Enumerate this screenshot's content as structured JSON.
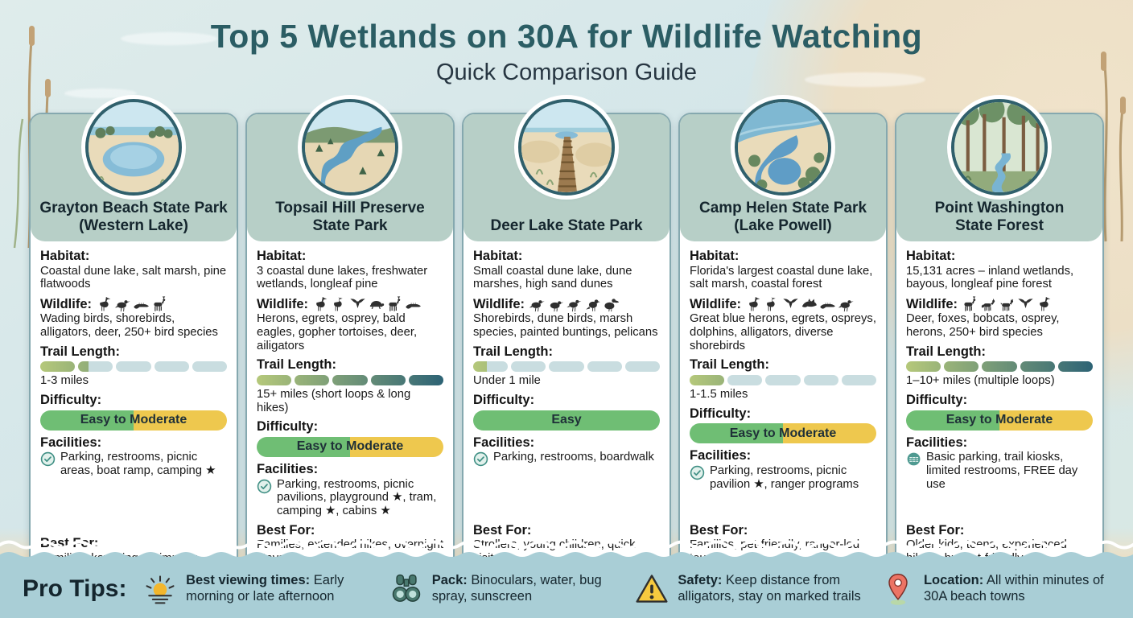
{
  "header": {
    "title": "Top 5 Wetlands on 30A for Wildlife Watching",
    "subtitle": "Quick Comparison Guide"
  },
  "labels": {
    "habitat": "Habitat:",
    "wildlife": "Wildlife:",
    "trail_length": "Trail Length:",
    "difficulty": "Difficulty:",
    "facilities": "Facilities:",
    "best_for": "Best For:"
  },
  "cards": [
    {
      "name_lines": [
        "Grayton Beach State Park",
        "(Western Lake)"
      ],
      "habitat": "Coastal dune lake, salt marsh, pine flatwoods",
      "wildlife": "Wading birds, shorebirds, alligators, deer, 250+ bird species",
      "wildlife_icons": [
        "heron-icon",
        "shorebird-icon",
        "alligator-icon",
        "deer-icon"
      ],
      "trail_text": "1-3 miles",
      "trail_fill_pct": 26,
      "difficulty": "Easy to Moderate",
      "facilities": "Parking, restrooms, picnic areas, boat ramp, camping ★",
      "facilities_icons": [
        "check-circle-icon"
      ],
      "best_for": "Families, kayaking, swimming"
    },
    {
      "name_lines": [
        "Topsail Hill Preserve",
        "State Park"
      ],
      "habitat": "3 coastal dune lakes, freshwater wetlands, longleaf pine",
      "wildlife": "Herons, egrets, osprey, bald eagles, gopher tortoises, deer, ailigators",
      "wildlife_icons": [
        "heron-icon",
        "egret-icon",
        "osprey-icon",
        "tortoise-icon",
        "deer-icon",
        "alligator-icon"
      ],
      "trail_text": "15+ miles (short loops & long hikes)",
      "trail_fill_pct": 100,
      "difficulty": "Easy to Moderate",
      "facilities": "Parking, restrooms, picnic pavilions, playground ★, tram, camping ★, cabins ★",
      "facilities_icons": [
        "check-circle-icon"
      ],
      "best_for": "Families, extended hikes, overnight stays"
    },
    {
      "name_lines": [
        "Deer Lake State Park"
      ],
      "habitat": "Small coastal dune lake, dune marshes, high sand dunes",
      "wildlife": "Shorebirds, dune birds, marsh species, painted buntings, pelicans",
      "wildlife_icons": [
        "shorebird-icon",
        "dune-bird-icon",
        "sandpiper-icon",
        "bunting-icon",
        "pelican-icon"
      ],
      "trail_text": "Under 1 mile",
      "trail_fill_pct": 8,
      "difficulty": "Easy",
      "facilities": "Parking, restrooms, boardwalk",
      "facilities_icons": [
        "check-circle-icon"
      ],
      "best_for": "Strollers, young children, quick visits"
    },
    {
      "name_lines": [
        "Camp Helen State Park",
        "(Lake Powell)"
      ],
      "habitat": "Florida's largest coastal dune lake, salt marsh, coastal forest",
      "wildlife": "Great blue herons, egrets, ospreys, dolphins, alligators, diverse shorebirds",
      "wildlife_icons": [
        "heron-icon",
        "egret-icon",
        "osprey-icon",
        "dolphin-icon",
        "alligator-icon",
        "shorebird-icon"
      ],
      "trail_text": "1-1.5 miles",
      "trail_fill_pct": 20,
      "difficulty": "Easy to Moderate",
      "facilities": "Parking, restrooms, picnic pavilion ★, ranger programs",
      "facilities_icons": [
        "check-circle-icon"
      ],
      "best_for": "Families, pet-friendly, ranger-led tours"
    },
    {
      "name_lines": [
        "Point Washington",
        "State Forest"
      ],
      "habitat": "15,131 acres – inland wetlands, bayous, longleaf pine forest",
      "wildlife": "Deer, foxes, bobcats, osprey, herons, 250+ bird species",
      "wildlife_icons": [
        "deer-icon",
        "fox-icon",
        "bobcat-icon",
        "osprey-icon",
        "heron-icon"
      ],
      "trail_text": "1–10+ miles (multiple loops)",
      "trail_fill_pct": 100,
      "difficulty": "Easy to Moderate",
      "facilities": "Basic parking, trail kiosks, limited restrooms, FREE day use",
      "facilities_icons": [
        "dashed-circle-icon"
      ],
      "best_for": "Older kids, teens, experienced hikers, budget-friendly"
    }
  ],
  "footer": {
    "pro_tips_label": "Pro Tips:",
    "tips": [
      {
        "icon": "sunrise-icon",
        "bold": "Best viewing times:",
        "text": "Early morning or late afternoon"
      },
      {
        "icon": "binoculars-icon",
        "bold": "Pack:",
        "text": "Binoculars, water, bug spray, sunscreen"
      },
      {
        "icon": "warning-icon",
        "bold": "Safety:",
        "text": "Keep distance from alligators, stay on marked trails"
      },
      {
        "icon": "location-pin-icon",
        "bold": "Location:",
        "text": "All within minutes of 30A beach towns"
      }
    ]
  },
  "colors": {
    "title": "#2b5d64",
    "card_header": "#b7cfc7",
    "card_border": "#85a8af",
    "trail_track": "#c9dde0",
    "trail_gradient_start": "#b5c87a",
    "trail_gradient_end": "#2d6375",
    "difficulty_green": "#6fbe74",
    "difficulty_yellow": "#eec84e",
    "check_teal": "#3f8f84",
    "footer_band": "#a9ced6",
    "warning_yellow": "#f6c93f",
    "pin_red": "#ec7364"
  }
}
